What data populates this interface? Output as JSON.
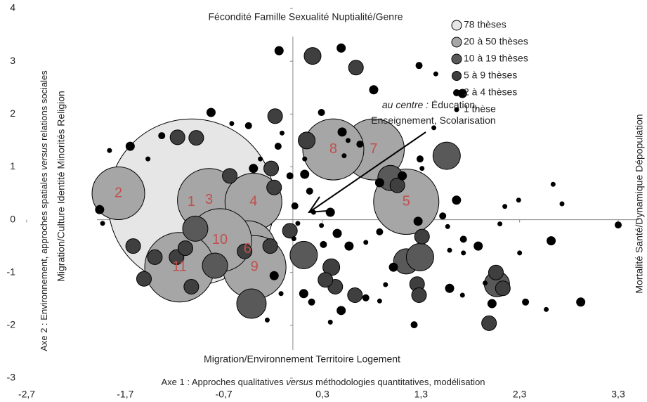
{
  "chart_data": {
    "type": "bubble",
    "top_label": "Fécondité Famille Sexualité Nuptialité/Genre",
    "bottom_label": "Migration/Environnement Territoire Logement",
    "left_label": "Migration/Culture Identité Minorités Religion",
    "right_label": "Mortalité Santé/Dynamique Dépopulation",
    "xlabel": [
      "Axe 1 : Approches qualitatives ",
      "versus",
      " méthodologies quantitatives, modélisation"
    ],
    "ylabel": [
      "Axe 2 : Environnement, approches spatiales ",
      "versus",
      " relations sociales"
    ],
    "annotation": {
      "lines": [
        [
          "au centre :",
          " Éducation,"
        ],
        [
          "Enseignement, Scolarisation"
        ]
      ]
    },
    "xlim": [
      -2.7,
      3.3
    ],
    "xticks": [
      {
        "value": -2.7,
        "label": "-2,7"
      },
      {
        "value": -1.7,
        "label": "-1,7"
      },
      {
        "value": -0.7,
        "label": "-0,7"
      },
      {
        "value": 0.3,
        "label": "0,3"
      },
      {
        "value": 1.3,
        "label": "1,3"
      },
      {
        "value": 2.3,
        "label": "2,3"
      },
      {
        "value": 3.3,
        "label": "3,3"
      }
    ],
    "ylim": [
      -3,
      4
    ],
    "yticks": [
      -3,
      -2,
      -1,
      0,
      1,
      2,
      3,
      4
    ],
    "legend": "upper right",
    "label_color": "#c0504d",
    "series": [
      {
        "name": "78 thèses",
        "color": "#e6e6e6",
        "x": [
          -1.03
        ],
        "y": [
          0.33
        ],
        "sizes": [
          78
        ],
        "labels": [
          "1"
        ]
      },
      {
        "name": "20 à 50 thèses",
        "color": "#a6a6a6",
        "x": [
          -1.77,
          -0.85,
          -0.4,
          1.15,
          -0.46,
          0.82,
          0.41,
          -0.39,
          -0.74,
          -1.15
        ],
        "y": [
          0.5,
          0.37,
          0.34,
          0.34,
          -0.56,
          1.33,
          1.33,
          -0.9,
          -0.39,
          -0.9
        ],
        "sizes": [
          24,
          29,
          26,
          30,
          26,
          28,
          28,
          29,
          29,
          32
        ],
        "labels": [
          "2",
          "3",
          "4",
          "5",
          "6",
          "7",
          "8",
          "9",
          "10",
          "11"
        ]
      },
      {
        "name": "10 à 19 thèses",
        "color": "#595959",
        "x": [
          1.56,
          0.99,
          -0.99,
          -0.79,
          -0.42,
          0.11,
          1.15,
          1.29,
          2.07
        ],
        "y": [
          1.21,
          0.79,
          -0.17,
          -0.87,
          -1.59,
          -0.67,
          -0.79,
          -0.71,
          -1.22
        ],
        "sizes": [
          12,
          11,
          11,
          11,
          13,
          12,
          11,
          12,
          11
        ]
      },
      {
        "name": "5 à 9 thèses",
        "color": "#3f3f3f",
        "x": [
          0.2,
          0.64,
          -0.18,
          0.14,
          -0.64,
          -0.22,
          -0.98,
          -0.19,
          -0.03,
          -1.18,
          -1.4,
          -1.09,
          -1.62,
          -1.51,
          -0.49,
          -0.23,
          0.39,
          0.43,
          0.63,
          0.33,
          1.31,
          1.26,
          1.28,
          1.06,
          2.06,
          2.13,
          1.99,
          -1.03,
          -1.17
        ],
        "y": [
          3.1,
          2.88,
          1.96,
          1.5,
          0.83,
          0.97,
          1.55,
          0.61,
          -0.21,
          -0.71,
          -0.71,
          -0.54,
          -0.5,
          -1.12,
          -0.6,
          -0.5,
          -0.9,
          -1.27,
          -1.43,
          -1.14,
          -0.32,
          -1.22,
          -1.43,
          0.65,
          -1.0,
          -1.3,
          -1.96,
          -1.27,
          1.56
        ],
        "sizes": [
          7,
          6,
          6,
          7,
          6,
          6,
          6,
          6,
          6,
          6,
          6,
          6,
          6,
          6,
          6,
          6,
          7,
          6,
          6,
          6,
          6,
          6,
          6,
          6,
          6,
          6,
          6,
          6,
          6
        ]
      },
      {
        "name": "2 à 4 thèses",
        "color": "#000000",
        "x": [
          -0.14,
          0.49,
          0.82,
          1.28,
          1.72,
          0.29,
          0.5,
          0.68,
          0.88,
          1.11,
          1.29,
          1.27,
          1.52,
          1.66,
          1.73,
          1.88,
          0.88,
          0.57,
          0.45,
          0.31,
          0.38,
          0.17,
          0.12,
          -0.03,
          -0.4,
          -0.15,
          -0.45,
          -0.83,
          -1.33,
          -1.65,
          -1.96,
          0.02,
          -0.19,
          0.11,
          0.19,
          0.49,
          0.74,
          1.23,
          1.02,
          1.59,
          2.02,
          2.36,
          2.62,
          2.92,
          3.3
        ],
        "y": [
          3.2,
          3.25,
          2.46,
          2.92,
          2.39,
          2.03,
          1.66,
          1.43,
          0.7,
          0.83,
          1.15,
          -0.03,
          0.07,
          0.37,
          -0.37,
          -0.5,
          -0.23,
          -0.5,
          -0.26,
          -0.47,
          0.14,
          0.54,
          0.86,
          0.83,
          0.97,
          1.39,
          1.78,
          2.03,
          1.59,
          1.39,
          0.19,
          0.26,
          -1.06,
          -1.4,
          -1.56,
          -1.72,
          -1.48,
          -1.99,
          -0.9,
          -1.3,
          -1.59,
          -1.56,
          -0.4,
          -1.56,
          -0.1
        ],
        "sizes": [
          3,
          3,
          3,
          2,
          3,
          2,
          3,
          2,
          3,
          3,
          2,
          3,
          2,
          3,
          2,
          3,
          2,
          3,
          3,
          2,
          3,
          2,
          3,
          2,
          3,
          2,
          2,
          3,
          2,
          3,
          3,
          2,
          3,
          3,
          2,
          3,
          2,
          2,
          3,
          3,
          3,
          2,
          3,
          3,
          2
        ]
      },
      {
        "name": "1 thèse",
        "color": "#000000",
        "x": [
          1.45,
          0.56,
          1.31,
          1.57,
          1.59,
          1.73,
          0.74,
          0.29,
          0.21,
          0.12,
          -0.33,
          -0.11,
          -0.62,
          -1.47,
          -1.86,
          -1.93,
          0.05,
          0.01,
          -0.12,
          -0.26,
          0.38,
          0.88,
          0.94,
          1.72,
          1.95,
          2.57,
          2.3,
          2.1,
          2.29,
          2.64,
          2.73,
          2.15,
          0.52,
          1.43
        ],
        "y": [
          2.76,
          1.5,
          0.97,
          -0.13,
          -0.58,
          -0.63,
          -0.43,
          -0.11,
          0.14,
          1.15,
          1.15,
          1.64,
          1.82,
          1.15,
          1.31,
          -0.07,
          -0.07,
          -0.36,
          -1.4,
          -1.9,
          -1.94,
          -1.54,
          -1.23,
          -1.43,
          -1.2,
          -1.7,
          -0.63,
          -0.08,
          0.37,
          0.67,
          0.3,
          0.25,
          1.21,
          1.74
        ],
        "sizes": [
          1,
          1,
          1,
          1,
          1,
          1,
          1,
          1,
          1,
          1,
          1,
          1,
          1,
          1,
          1,
          1,
          1,
          1,
          1,
          1,
          1,
          1,
          1,
          1,
          1,
          1,
          1,
          1,
          1,
          1,
          1,
          1,
          1,
          1
        ]
      }
    ]
  }
}
